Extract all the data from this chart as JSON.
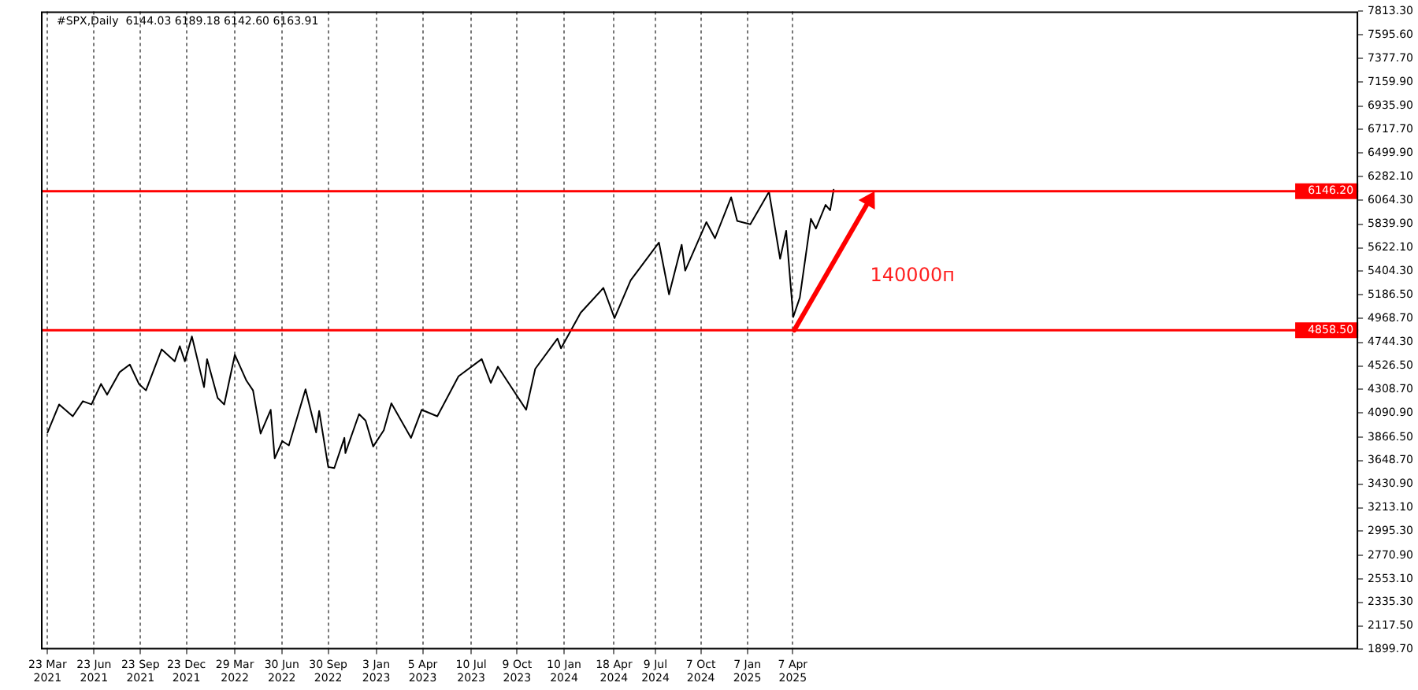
{
  "chart_data": {
    "type": "line",
    "title": "#SPX,Daily  6144.03 6189.18 6142.60 6163.91",
    "x": [
      "2021-03-23",
      "2021-04-15",
      "2021-05-12",
      "2021-06-01",
      "2021-06-18",
      "2021-07-07",
      "2021-07-19",
      "2021-08-13",
      "2021-09-02",
      "2021-09-20",
      "2021-10-04",
      "2021-11-04",
      "2021-11-30",
      "2021-12-10",
      "2021-12-20",
      "2022-01-03",
      "2022-01-27",
      "2022-02-02",
      "2022-02-23",
      "2022-03-08",
      "2022-03-29",
      "2022-04-21",
      "2022-05-04",
      "2022-05-19",
      "2022-06-08",
      "2022-06-16",
      "2022-07-01",
      "2022-07-14",
      "2022-08-16",
      "2022-09-06",
      "2022-09-12",
      "2022-09-30",
      "2022-10-12",
      "2022-11-01",
      "2022-11-03",
      "2022-11-30",
      "2022-12-13",
      "2022-12-28",
      "2023-01-18",
      "2023-02-02",
      "2023-03-13",
      "2023-04-03",
      "2023-05-04",
      "2023-06-15",
      "2023-07-31",
      "2023-08-18",
      "2023-09-01",
      "2023-10-27",
      "2023-11-14",
      "2023-12-28",
      "2024-01-04",
      "2024-02-12",
      "2024-03-28",
      "2024-04-19",
      "2024-05-21",
      "2024-07-16",
      "2024-08-05",
      "2024-08-30",
      "2024-09-06",
      "2024-10-18",
      "2024-11-04",
      "2024-12-06",
      "2024-12-18",
      "2025-01-13",
      "2025-02-19",
      "2025-03-13",
      "2025-03-25",
      "2025-04-08",
      "2025-04-21",
      "2025-05-13",
      "2025-05-23",
      "2025-06-11",
      "2025-06-20",
      "2025-06-27"
    ],
    "series": [
      {
        "color": "#000000",
        "values": [
          3910,
          4170,
          4060,
          4200,
          4170,
          4360,
          4260,
          4470,
          4540,
          4360,
          4300,
          4680,
          4570,
          4710,
          4570,
          4800,
          4330,
          4590,
          4230,
          4170,
          4630,
          4390,
          4300,
          3900,
          4120,
          3670,
          3830,
          3790,
          4310,
          3910,
          4110,
          3590,
          3580,
          3860,
          3720,
          4080,
          4020,
          3780,
          3930,
          4180,
          3860,
          4120,
          4060,
          4430,
          4590,
          4370,
          4520,
          4120,
          4500,
          4780,
          4690,
          5020,
          5250,
          4970,
          5320,
          5670,
          5190,
          5650,
          5410,
          5860,
          5710,
          6090,
          5870,
          5840,
          6140,
          5520,
          5780,
          4980,
          5160,
          5890,
          5800,
          6020,
          5970,
          6160
        ]
      }
    ],
    "xlim": [
      "2021-03-10",
      "2028-05-01"
    ],
    "xticks": [
      {
        "value": "2021-03-23",
        "label": "23 Mar 2021"
      },
      {
        "value": "2021-06-23",
        "label": "23 Jun 2021"
      },
      {
        "value": "2021-09-23",
        "label": "23 Sep 2021"
      },
      {
        "value": "2021-12-23",
        "label": "23 Dec 2021"
      },
      {
        "value": "2022-03-29",
        "label": "29 Mar 2022"
      },
      {
        "value": "2022-06-30",
        "label": "30 Jun 2022"
      },
      {
        "value": "2022-09-30",
        "label": "30 Sep 2022"
      },
      {
        "value": "2023-01-03",
        "label": "3 Jan 2023"
      },
      {
        "value": "2023-04-05",
        "label": "5 Apr 2023"
      },
      {
        "value": "2023-07-10",
        "label": "10 Jul 2023"
      },
      {
        "value": "2023-10-09",
        "label": "9 Oct 2023"
      },
      {
        "value": "2024-01-10",
        "label": "10 Jan 2024"
      },
      {
        "value": "2024-04-18",
        "label": "18 Apr 2024"
      },
      {
        "value": "2024-07-09",
        "label": "9 Jul 2024"
      },
      {
        "value": "2024-10-07",
        "label": "7 Oct 2024"
      },
      {
        "value": "2025-01-07",
        "label": "7 Jan 2025"
      },
      {
        "value": "2025-04-07",
        "label": "7 Apr 2025"
      }
    ],
    "ylim": [
      1899.7,
      7813.3
    ],
    "yticks": [
      {
        "value": 1899.7,
        "label": "1899.70"
      },
      {
        "value": 2117.5,
        "label": "2117.50"
      },
      {
        "value": 2335.3,
        "label": "2335.30"
      },
      {
        "value": 2553.1,
        "label": "2553.10"
      },
      {
        "value": 2770.9,
        "label": "2770.90"
      },
      {
        "value": 2995.3,
        "label": "2995.30"
      },
      {
        "value": 3213.1,
        "label": "3213.10"
      },
      {
        "value": 3430.9,
        "label": "3430.90"
      },
      {
        "value": 3648.7,
        "label": "3648.70"
      },
      {
        "value": 3866.5,
        "label": "3866.50"
      },
      {
        "value": 4090.9,
        "label": "4090.90"
      },
      {
        "value": 4308.7,
        "label": "4308.70"
      },
      {
        "value": 4526.5,
        "label": "4526.50"
      },
      {
        "value": 4744.3,
        "label": "4744.30"
      },
      {
        "value": 4968.7,
        "label": "4968.70"
      },
      {
        "value": 5186.5,
        "label": "5186.50"
      },
      {
        "value": 5404.3,
        "label": "5404.30"
      },
      {
        "value": 5622.1,
        "label": "5622.10"
      },
      {
        "value": 5839.9,
        "label": "5839.90"
      },
      {
        "value": 6064.3,
        "label": "6064.30"
      },
      {
        "value": 6282.1,
        "label": "6282.10"
      },
      {
        "value": 6499.9,
        "label": "6499.90"
      },
      {
        "value": 6717.7,
        "label": "6717.70"
      },
      {
        "value": 6935.9,
        "label": "6935.90"
      },
      {
        "value": 7159.9,
        "label": "7159.90"
      },
      {
        "value": 7377.7,
        "label": "7377.70"
      },
      {
        "value": 7595.6,
        "label": "7595.60"
      },
      {
        "value": 7813.3,
        "label": "7813.30"
      }
    ],
    "ref_lines": [
      {
        "axis": "y",
        "value": 6146.2,
        "label": "6146.20",
        "color": "#ff0000"
      },
      {
        "axis": "y",
        "value": 4858.5,
        "label": "4858.50",
        "color": "#ff0000"
      }
    ],
    "annotations": [
      "140000п"
    ],
    "grid": "x"
  }
}
